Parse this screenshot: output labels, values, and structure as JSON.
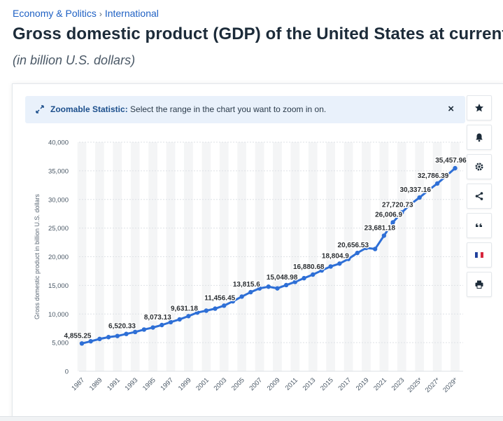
{
  "breadcrumb": {
    "items": [
      "Economy & Politics",
      "International"
    ],
    "separator": "›"
  },
  "title": "Gross domestic product (GDP) of the United States at current",
  "subtitle": "(in billion U.S. dollars)",
  "zoom_banner": {
    "bold": "Zoomable Statistic:",
    "text": "Select the range in the chart you want to zoom in on.",
    "close": "×"
  },
  "toolbar": {
    "icons": [
      "star-icon",
      "bell-icon",
      "gear-icon",
      "share-icon",
      "quote-icon",
      "french-flag-icon",
      "print-icon"
    ]
  },
  "colors": {
    "line": "#2e6fd6",
    "accent": "#1f61c4",
    "banner_bg": "#e9f1fb",
    "band": "#f4f5f6"
  },
  "chart_data": {
    "type": "line",
    "ylabel": "Gross domestic product in billion U.S. dollars",
    "xlabel": "",
    "ylim": [
      0,
      40000
    ],
    "yticks": [
      0,
      5000,
      10000,
      15000,
      20000,
      25000,
      30000,
      35000,
      40000
    ],
    "ytick_labels": [
      "0",
      "5,000",
      "10,000",
      "15,000",
      "20,000",
      "25,000",
      "30,000",
      "35,000",
      "40,000"
    ],
    "x_tick_labels": [
      "1987",
      "1989",
      "1991",
      "1993",
      "1995",
      "1997",
      "1999",
      "2001",
      "2003",
      "2005",
      "2007",
      "2009",
      "2011",
      "2013",
      "2015",
      "2017",
      "2019",
      "2021",
      "2023",
      "2025*",
      "2027*",
      "2029*"
    ],
    "x": [
      1987,
      1988,
      1989,
      1990,
      1991,
      1992,
      1993,
      1994,
      1995,
      1996,
      1997,
      1998,
      1999,
      2000,
      2001,
      2002,
      2003,
      2004,
      2005,
      2006,
      2007,
      2008,
      2009,
      2010,
      2011,
      2012,
      2013,
      2014,
      2015,
      2016,
      2017,
      2018,
      2019,
      2020,
      2021,
      2022,
      2023,
      2024,
      2025,
      2026,
      2027,
      2028,
      2029
    ],
    "values": [
      4855.25,
      5236,
      5641,
      5963,
      6158,
      6520.33,
      6858,
      7287,
      7640,
      8073.13,
      8577,
      9063,
      9631.18,
      10251,
      10582,
      10936,
      11456.45,
      12217,
      13039,
      13815.6,
      14474,
      14770,
      14478,
      15048.98,
      15600,
      16254,
      16880.68,
      17608,
      18295,
      18804.9,
      19612,
      20656.53,
      21540,
      21354,
      23681.18,
      26006.9,
      27720.73,
      29184,
      30337.16,
      31600,
      32786.39,
      34100,
      35457.96
    ],
    "data_labels": [
      {
        "x": 1987,
        "text": "4,855.25"
      },
      {
        "x": 1992,
        "text": "6,520.33"
      },
      {
        "x": 1996,
        "text": "8,073.13"
      },
      {
        "x": 1999,
        "text": "9,631.18"
      },
      {
        "x": 2003,
        "text": "11,456.45"
      },
      {
        "x": 2006,
        "text": "13,815.6"
      },
      {
        "x": 2010,
        "text": "15,048.98"
      },
      {
        "x": 2013,
        "text": "16,880.68"
      },
      {
        "x": 2016,
        "text": "18,804.9"
      },
      {
        "x": 2018,
        "text": "20,656.53"
      },
      {
        "x": 2021,
        "text": "23,681.18"
      },
      {
        "x": 2022,
        "text": "26,006.9"
      },
      {
        "x": 2023,
        "text": "27,720.73"
      },
      {
        "x": 2025,
        "text": "30,337.16"
      },
      {
        "x": 2027,
        "text": "32,786.39"
      },
      {
        "x": 2029,
        "text": "35,457.96"
      }
    ],
    "grid": true,
    "legend": "none"
  }
}
